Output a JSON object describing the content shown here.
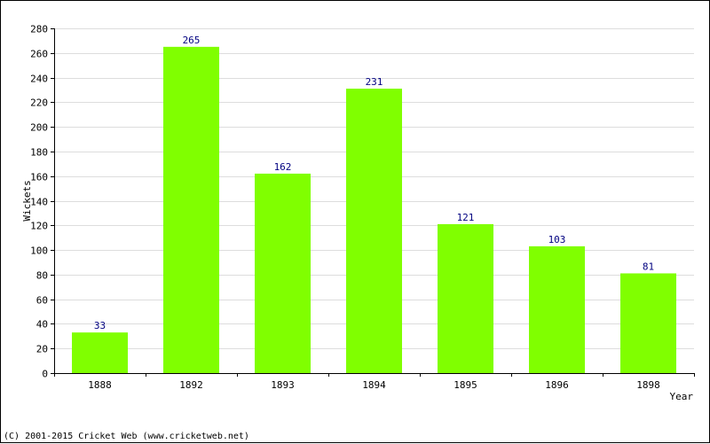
{
  "chart_data": {
    "type": "bar",
    "categories": [
      "1888",
      "1892",
      "1893",
      "1894",
      "1895",
      "1896",
      "1898"
    ],
    "values": [
      33,
      265,
      162,
      231,
      121,
      103,
      81
    ],
    "xlabel": "Year",
    "ylabel": "Wickets",
    "ylim": [
      0,
      280
    ],
    "yticks": [
      0,
      20,
      40,
      60,
      80,
      100,
      120,
      140,
      160,
      180,
      200,
      220,
      240,
      260,
      280
    ],
    "grid": true,
    "bar_color": "#80ff00",
    "label_color": "#000080"
  },
  "footer": {
    "copyright": "(C) 2001-2015 Cricket Web (www.cricketweb.net)"
  }
}
